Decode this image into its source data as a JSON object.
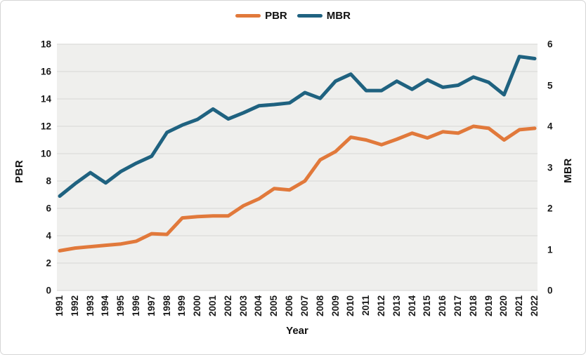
{
  "chart_data": {
    "type": "line",
    "title": "",
    "legend": {
      "position": "top",
      "entries": [
        "PBR",
        "MBR"
      ]
    },
    "grid": true,
    "x_axis": {
      "label": "Year",
      "categories": [
        "1991",
        "1992",
        "1993",
        "1994",
        "1995",
        "1996",
        "1997",
        "1998",
        "1999",
        "2000",
        "2001",
        "2002",
        "2003",
        "2004",
        "2005",
        "2006",
        "2007",
        "2008",
        "2009",
        "2010",
        "2011",
        "2012",
        "2013",
        "2014",
        "2015",
        "2016",
        "2017",
        "2018",
        "2019",
        "2020",
        "2021",
        "2022"
      ]
    },
    "left_axis": {
      "label": "PBR",
      "min": 0,
      "max": 18,
      "step": 2,
      "tick_labels": [
        "0",
        "2",
        "4",
        "6",
        "8",
        "10",
        "12",
        "14",
        "16",
        "18"
      ]
    },
    "right_axis": {
      "label": "MBR",
      "min": 0,
      "max": 6,
      "step": 1,
      "tick_labels": [
        "0",
        "1",
        "2",
        "3",
        "4",
        "5",
        "6"
      ]
    },
    "series": [
      {
        "name": "PBR",
        "axis": "left",
        "color": "#E1793B",
        "values": [
          2.9,
          3.1,
          3.2,
          3.3,
          3.4,
          3.6,
          4.15,
          4.1,
          5.3,
          5.4,
          5.45,
          5.45,
          6.2,
          6.7,
          7.45,
          7.35,
          8.0,
          9.55,
          10.15,
          11.2,
          11.0,
          10.65,
          11.05,
          11.5,
          11.15,
          11.6,
          11.5,
          12.0,
          11.85,
          11.0,
          11.75,
          11.85
        ]
      },
      {
        "name": "MBR",
        "axis": "right",
        "color": "#1F6280",
        "values": [
          2.3,
          2.6,
          2.87,
          2.62,
          2.9,
          3.1,
          3.27,
          3.85,
          4.03,
          4.17,
          4.42,
          4.18,
          4.33,
          4.5,
          4.53,
          4.57,
          4.82,
          4.68,
          5.1,
          5.27,
          4.87,
          4.87,
          5.1,
          4.9,
          5.13,
          4.95,
          5.0,
          5.2,
          5.07,
          4.77,
          5.7,
          5.65
        ]
      }
    ]
  },
  "colors": {
    "pbr_line": "#E1793B",
    "mbr_line": "#1F6280",
    "plot_background": "#EFEFED",
    "gridline": "#DCDCDA",
    "text": "#1A1A1A",
    "border": "#D5D5D5"
  }
}
